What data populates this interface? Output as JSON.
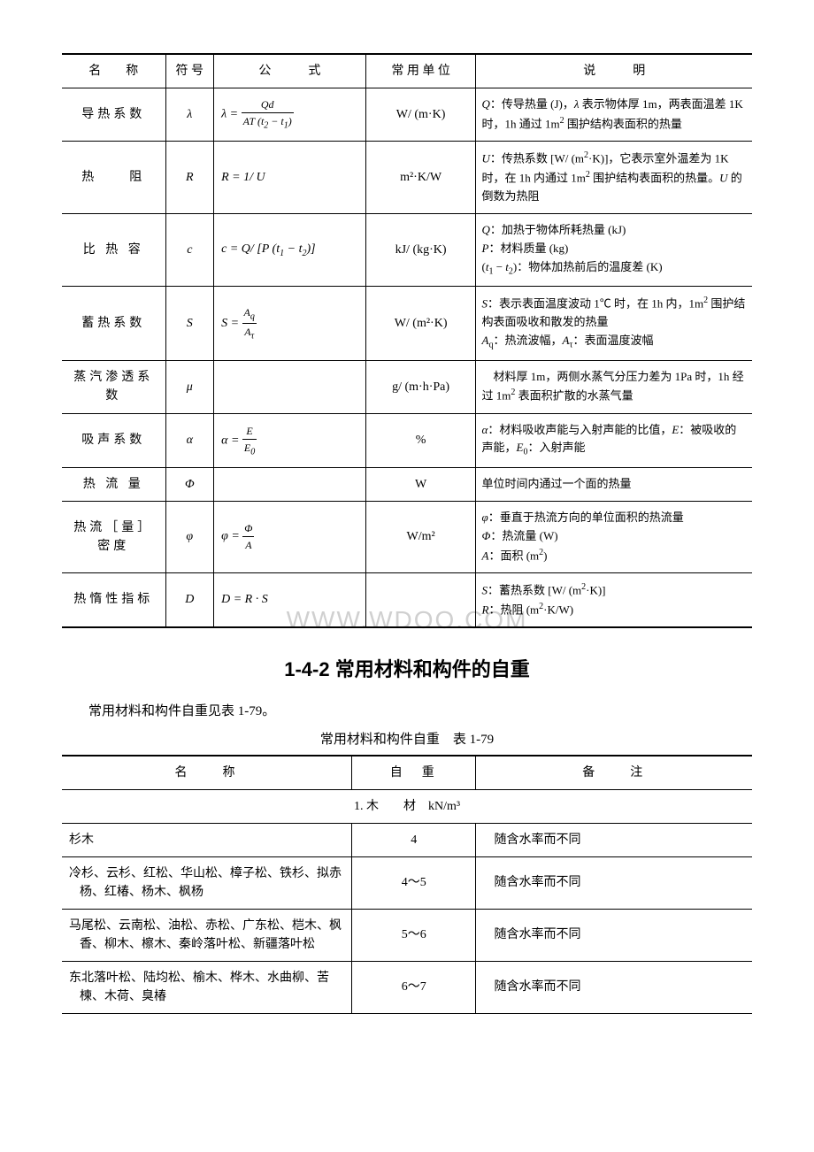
{
  "thermal_table": {
    "headers": [
      "名　　称",
      "符 号",
      "公　　　式",
      "常 用 单 位",
      "说　　　明"
    ],
    "col_widths": [
      "15%",
      "7%",
      "22%",
      "16%",
      "40%"
    ],
    "rows": [
      {
        "name": "导热系数",
        "symbol": "λ",
        "formula_html": "λ = <span class='frac'><span class='num'><i>Qd</i></span><span class='den'><i>AT</i> (<i>t</i><sub>2</sub> − <i>t</i><sub>1</sub>)</span></span>",
        "unit": "W/ (m·K)",
        "desc_html": "<i>Q</i>：传导热量 (J)，<i>λ</i> 表示物体厚 1m，两表面温差 1K 时，1h 通过 1m<sup>2</sup> 围护结构表面积的热量"
      },
      {
        "name": "热　　阻",
        "symbol": "R",
        "formula_html": "<i>R</i> = 1/ <i>U</i>",
        "unit": "m²·K/W",
        "desc_html": "<i>U</i>：传热系数 [W/ (m<sup>2</sup>·K)]，它表示室外温差为 1K 时，在 1h 内通过 1m<sup>2</sup> 围护结构表面积的热量。<i>U</i> 的倒数为热阻"
      },
      {
        "name": "比 热 容",
        "symbol": "c",
        "formula_html": "<i>c</i> = <i>Q</i>/ [<i>P</i> (<i>t</i><sub>1</sub> − <i>t</i><sub>2</sub>)]",
        "unit": "kJ/ (kg·K)",
        "desc_html": "<i>Q</i>：加热于物体所耗热量 (kJ)<br><i>P</i>：材料质量 (kg)<br>(<i>t</i><sub>1</sub> − <i>t</i><sub>2</sub>)：物体加热前后的温度差 (K)"
      },
      {
        "name": "蓄热系数",
        "symbol": "S",
        "formula_html": "<i>S</i> = <span class='frac'><span class='num'><i>A</i><sub>q</sub></span><span class='den'><i>A</i><sub>τ</sub></span></span>",
        "unit": "W/ (m²·K)",
        "desc_html": "<i>S</i>：表示表面温度波动 1℃ 时，在 1h 内，1m<sup>2</sup> 围护结构表面吸收和散发的热量<br><i>A</i><sub>q</sub>：热流波幅，<i>A</i><sub>τ</sub>：表面温度波幅"
      },
      {
        "name": "蒸汽渗透系数",
        "symbol": "μ",
        "formula_html": "",
        "unit": "g/ (m·h·Pa)",
        "desc_html": "　材料厚 1m，两侧水蒸气分压力差为 1Pa 时，1h 经过 1m<sup>2</sup> 表面积扩散的水蒸气量"
      },
      {
        "name": "吸声系数",
        "symbol": "α",
        "formula_html": "<i>α</i> = <span class='frac'><span class='num'><i>E</i></span><span class='den'><i>E</i><sub>0</sub></span></span>",
        "unit": "%",
        "desc_html": "<i>α</i>：材料吸收声能与入射声能的比值，<i>E</i>：被吸收的声能，<i>E</i><sub>0</sub>：入射声能"
      },
      {
        "name": "热 流 量",
        "symbol": "Φ",
        "formula_html": "",
        "unit": "W",
        "desc_html": "单位时间内通过一个面的热量"
      },
      {
        "name": "热流［量］密度",
        "symbol": "φ",
        "formula_html": "<i>φ</i> = <span class='frac'><span class='num'><i>Φ</i></span><span class='den'><i>A</i></span></span>",
        "unit": "W/m²",
        "desc_html": "<i>φ</i>：垂直于热流方向的单位面积的热流量<br><i>Φ</i>：热流量 (W)<br><i>A</i>：面积 (m<sup>2</sup>)"
      },
      {
        "name": "热惰性指标",
        "symbol": "D",
        "formula_html": "<i>D</i> = <i>R</i> · <i>S</i>",
        "unit": "",
        "desc_html": "<i>S</i>：蓄热系数 [W/ (m<sup>2</sup>·K)]<br><i>R</i>：热阻 (m<sup>2</sup>·K/W)"
      }
    ]
  },
  "section_title": "1-4-2 常用材料和构件的自重",
  "intro_text": "常用材料和构件自重见表 1-79。",
  "material_caption": "常用材料和构件自重　表 1-79",
  "material_table": {
    "headers": [
      "名　　称",
      "自　重",
      "备　　注"
    ],
    "col_widths": [
      "42%",
      "18%",
      "40%"
    ],
    "section_label": "1. 木　　材　kN/m³",
    "rows": [
      {
        "name": "杉木",
        "weight": "4",
        "note": "随含水率而不同"
      },
      {
        "name": "冷杉、云杉、红松、华山松、樟子松、铁杉、拟赤杨、红椿、杨木、枫杨",
        "weight": "4～5",
        "note": "随含水率而不同"
      },
      {
        "name": "马尾松、云南松、油松、赤松、广东松、桤木、枫香、柳木、檫木、秦岭落叶松、新疆落叶松",
        "weight": "5～6",
        "note": "随含水率而不同"
      },
      {
        "name": "东北落叶松、陆均松、榆木、桦木、水曲柳、苦楝、木荷、臭椿",
        "weight": "6～7",
        "note": "随含水率而不同"
      }
    ]
  },
  "watermark_text": "WWW.WDOO.COM"
}
